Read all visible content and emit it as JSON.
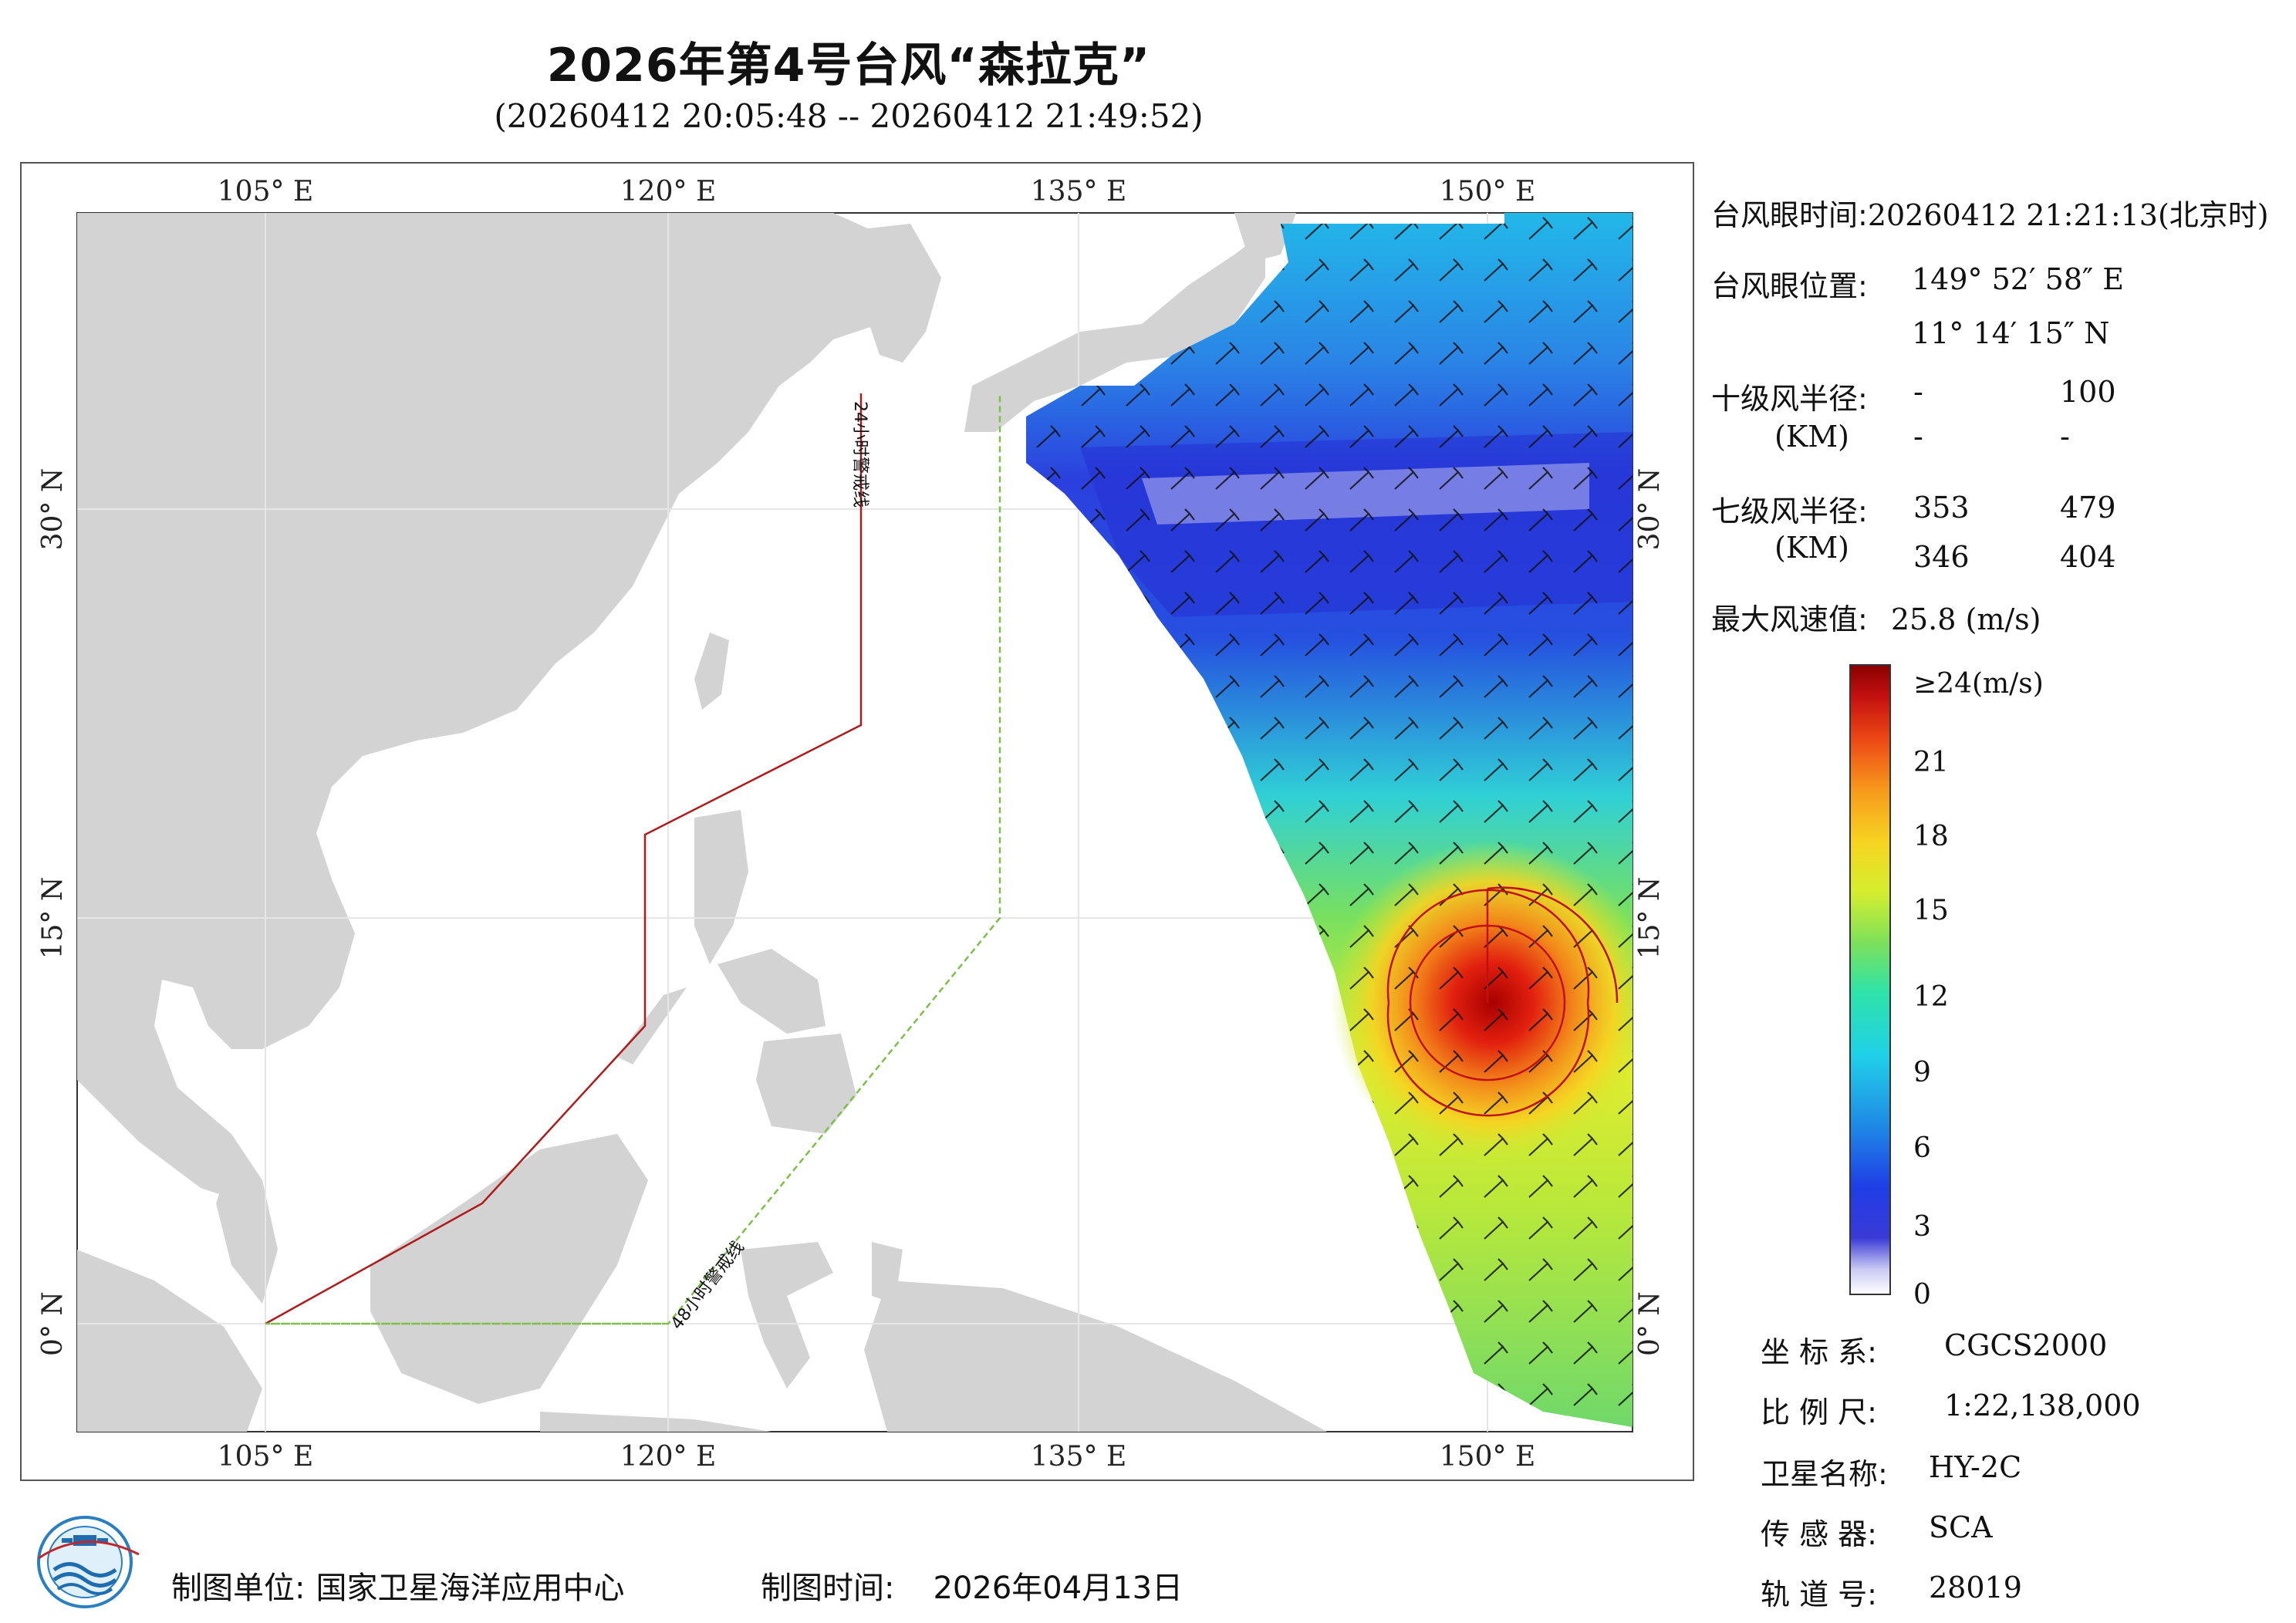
{
  "header": {
    "title": "2026年第4号台风“森拉克”",
    "subtitle": "(20260412 20:05:48 -- 20260412 21:49:52)"
  },
  "axes": {
    "lon_labels": [
      "105° E",
      "120° E",
      "135° E",
      "150° E"
    ],
    "lat_labels": [
      "30° N",
      "15° N",
      "0° N"
    ]
  },
  "warning_lines": {
    "line_24h": "24小时警戒线",
    "line_48h": "48小时警戒线"
  },
  "info": {
    "eye_time_label": "台风眼时间:",
    "eye_time_value": "20260412 21:21:13(北京时)",
    "eye_pos_label": "台风眼位置:",
    "eye_lon": "149° 52′ 58″ E",
    "eye_lat": "11° 14′ 15″ N",
    "r10_label": "十级风半径:",
    "r10_unit": "(KM)",
    "r10_values": [
      "-",
      "100",
      "-",
      "-"
    ],
    "r7_label": "七级风半径:",
    "r7_unit": "(KM)",
    "r7_values": [
      "353",
      "479",
      "346",
      "404"
    ],
    "max_wind_label": "最大风速值:",
    "max_wind_value": "25.8  (m/s)"
  },
  "colorbar": {
    "ticks": [
      "≥24(m/s)",
      "21",
      "18",
      "15",
      "12",
      "9",
      "6",
      "3",
      "0"
    ],
    "max_value": 24,
    "min_value": 0
  },
  "meta": {
    "crs_label": "坐 标 系:",
    "crs_value": "CGCS2000",
    "scale_label": "比 例 尺:",
    "scale_value": "1:22,138,000",
    "satellite_label": "卫星名称:",
    "satellite_value": "HY-2C",
    "sensor_label": "传 感 器:",
    "sensor_value": "SCA",
    "orbit_label": "轨 道 号:",
    "orbit_value": "28019"
  },
  "footer": {
    "unit_label": "制图单位:",
    "unit_value": "国家卫星海洋应用中心",
    "date_label": "制图时间:",
    "date_value": "2026年04月13日"
  },
  "colors": {
    "land": "#d3d3d3",
    "warning_24h": "#b01a1a",
    "warning_48h": "#7cc04a",
    "grid": "#e6e6e6",
    "typhoon_circle": "#c01010"
  }
}
